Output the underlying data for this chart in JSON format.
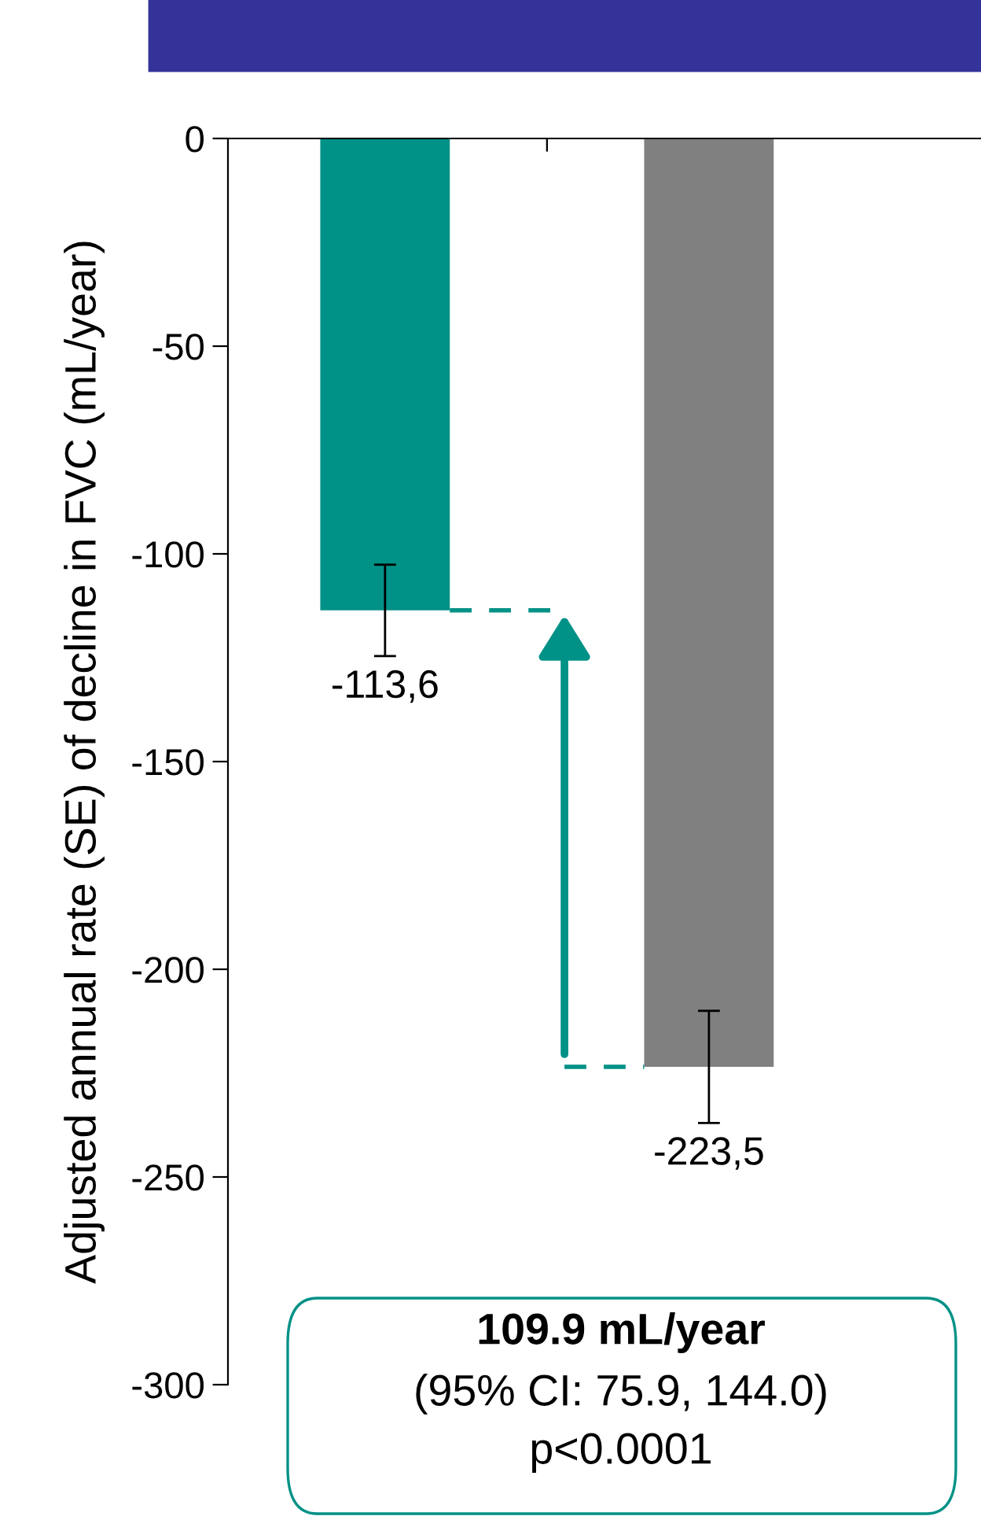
{
  "chart_data": {
    "type": "bar",
    "ylabel": "Adjusted annual rate (SE) of decline in FVC (mL/year)",
    "categories": [
      null,
      null
    ],
    "values": [
      -113.6,
      -223.5
    ],
    "colors": [
      "#009187",
      "#808080"
    ],
    "errors": [
      11,
      13.5
    ],
    "value_labels": [
      "-113,6",
      "-223,5"
    ],
    "ylim": [
      -300,
      0
    ],
    "yticks": [
      -300,
      -250,
      -200,
      -150,
      -100,
      -50,
      0
    ],
    "tick_labels": "y",
    "grid": false,
    "annotations": [
      "109.9 mL/year",
      "(95% CI: 75.9, 144.0)",
      "p<0.0001"
    ]
  }
}
